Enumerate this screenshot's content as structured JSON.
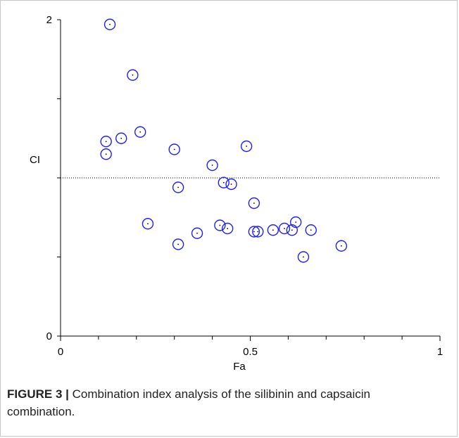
{
  "chart_data": {
    "type": "scatter",
    "xlabel": "Fa",
    "ylabel": "CI",
    "xlim": [
      0,
      1
    ],
    "ylim": [
      0,
      2
    ],
    "x_ticks": [
      "0",
      "0.5",
      "1"
    ],
    "y_ticks": [
      "0",
      "2"
    ],
    "reference_line": {
      "y": 1.0,
      "style": "dotted"
    },
    "marker": {
      "shape": "circle",
      "color": "#1f1fff"
    },
    "points": [
      {
        "x": 0.13,
        "y": 1.97
      },
      {
        "x": 0.19,
        "y": 1.65
      },
      {
        "x": 0.21,
        "y": 1.29
      },
      {
        "x": 0.16,
        "y": 1.25
      },
      {
        "x": 0.12,
        "y": 1.23
      },
      {
        "x": 0.12,
        "y": 1.15
      },
      {
        "x": 0.3,
        "y": 1.18
      },
      {
        "x": 0.49,
        "y": 1.2
      },
      {
        "x": 0.4,
        "y": 1.08
      },
      {
        "x": 0.43,
        "y": 0.97
      },
      {
        "x": 0.45,
        "y": 0.96
      },
      {
        "x": 0.31,
        "y": 0.94
      },
      {
        "x": 0.51,
        "y": 0.84
      },
      {
        "x": 0.23,
        "y": 0.71
      },
      {
        "x": 0.42,
        "y": 0.7
      },
      {
        "x": 0.44,
        "y": 0.68
      },
      {
        "x": 0.62,
        "y": 0.72
      },
      {
        "x": 0.51,
        "y": 0.66
      },
      {
        "x": 0.52,
        "y": 0.66
      },
      {
        "x": 0.56,
        "y": 0.67
      },
      {
        "x": 0.59,
        "y": 0.68
      },
      {
        "x": 0.61,
        "y": 0.67
      },
      {
        "x": 0.66,
        "y": 0.67
      },
      {
        "x": 0.36,
        "y": 0.65
      },
      {
        "x": 0.31,
        "y": 0.58
      },
      {
        "x": 0.74,
        "y": 0.57
      },
      {
        "x": 0.64,
        "y": 0.5
      }
    ]
  },
  "caption": {
    "label": "FIGURE 3 |",
    "text": " Combination index analysis of the silibinin and capsaicin combination."
  }
}
